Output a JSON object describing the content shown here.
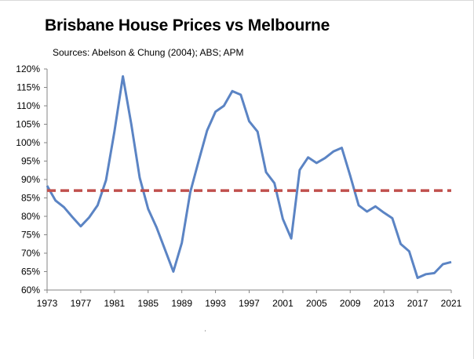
{
  "chart_data": {
    "type": "line",
    "title": "Brisbane House Prices vs Melbourne",
    "subtitle": "Sources: Abelson & Chung (2004); ABS; APM",
    "xlabel": "",
    "ylabel": "",
    "x_ticks": [
      "1973",
      "1977",
      "1981",
      "1985",
      "1989",
      "1993",
      "1997",
      "2001",
      "2005",
      "2009",
      "2013",
      "2017",
      "2021"
    ],
    "y_ticks": [
      "60%",
      "65%",
      "70%",
      "75%",
      "80%",
      "85%",
      "90%",
      "95%",
      "100%",
      "105%",
      "110%",
      "115%",
      "120%"
    ],
    "xlim": [
      1973,
      2021
    ],
    "ylim": [
      60,
      120
    ],
    "grid": false,
    "legend": "none",
    "series": [
      {
        "color": "#5b84c4",
        "style": "solid",
        "x": [
          1973,
          1974,
          1975,
          1976,
          1977,
          1978,
          1979,
          1980,
          1981,
          1982,
          1983,
          1984,
          1985,
          1986,
          1987,
          1988,
          1989,
          1990,
          1991,
          1992,
          1993,
          1994,
          1995,
          1996,
          1997,
          1998,
          1999,
          2000,
          2001,
          2002,
          2003,
          2004,
          2005,
          2006,
          2007,
          2008,
          2009,
          2010,
          2011,
          2012,
          2013,
          2014,
          2015,
          2016,
          2017,
          2018,
          2019,
          2020,
          2021
        ],
        "values": [
          88.3,
          84.3,
          82.5,
          79.8,
          77.3,
          79.7,
          83.0,
          89.8,
          103.0,
          118.0,
          105.0,
          90.5,
          82.0,
          77.0,
          71.0,
          65.0,
          72.8,
          86.5,
          95.0,
          103.3,
          108.4,
          110.0,
          114.0,
          113.0,
          105.8,
          103.0,
          92.0,
          89.0,
          79.3,
          74.0,
          92.6,
          96.0,
          94.5,
          95.8,
          97.6,
          98.6,
          91.0,
          83.0,
          81.3,
          82.7,
          81.0,
          79.5,
          72.5,
          70.5,
          63.3,
          64.3,
          64.6,
          67.0,
          67.6
        ]
      },
      {
        "color": "#c0504d",
        "style": "dashed",
        "x": [
          1973,
          2021
        ],
        "values": [
          87.0,
          87.0
        ]
      }
    ]
  }
}
